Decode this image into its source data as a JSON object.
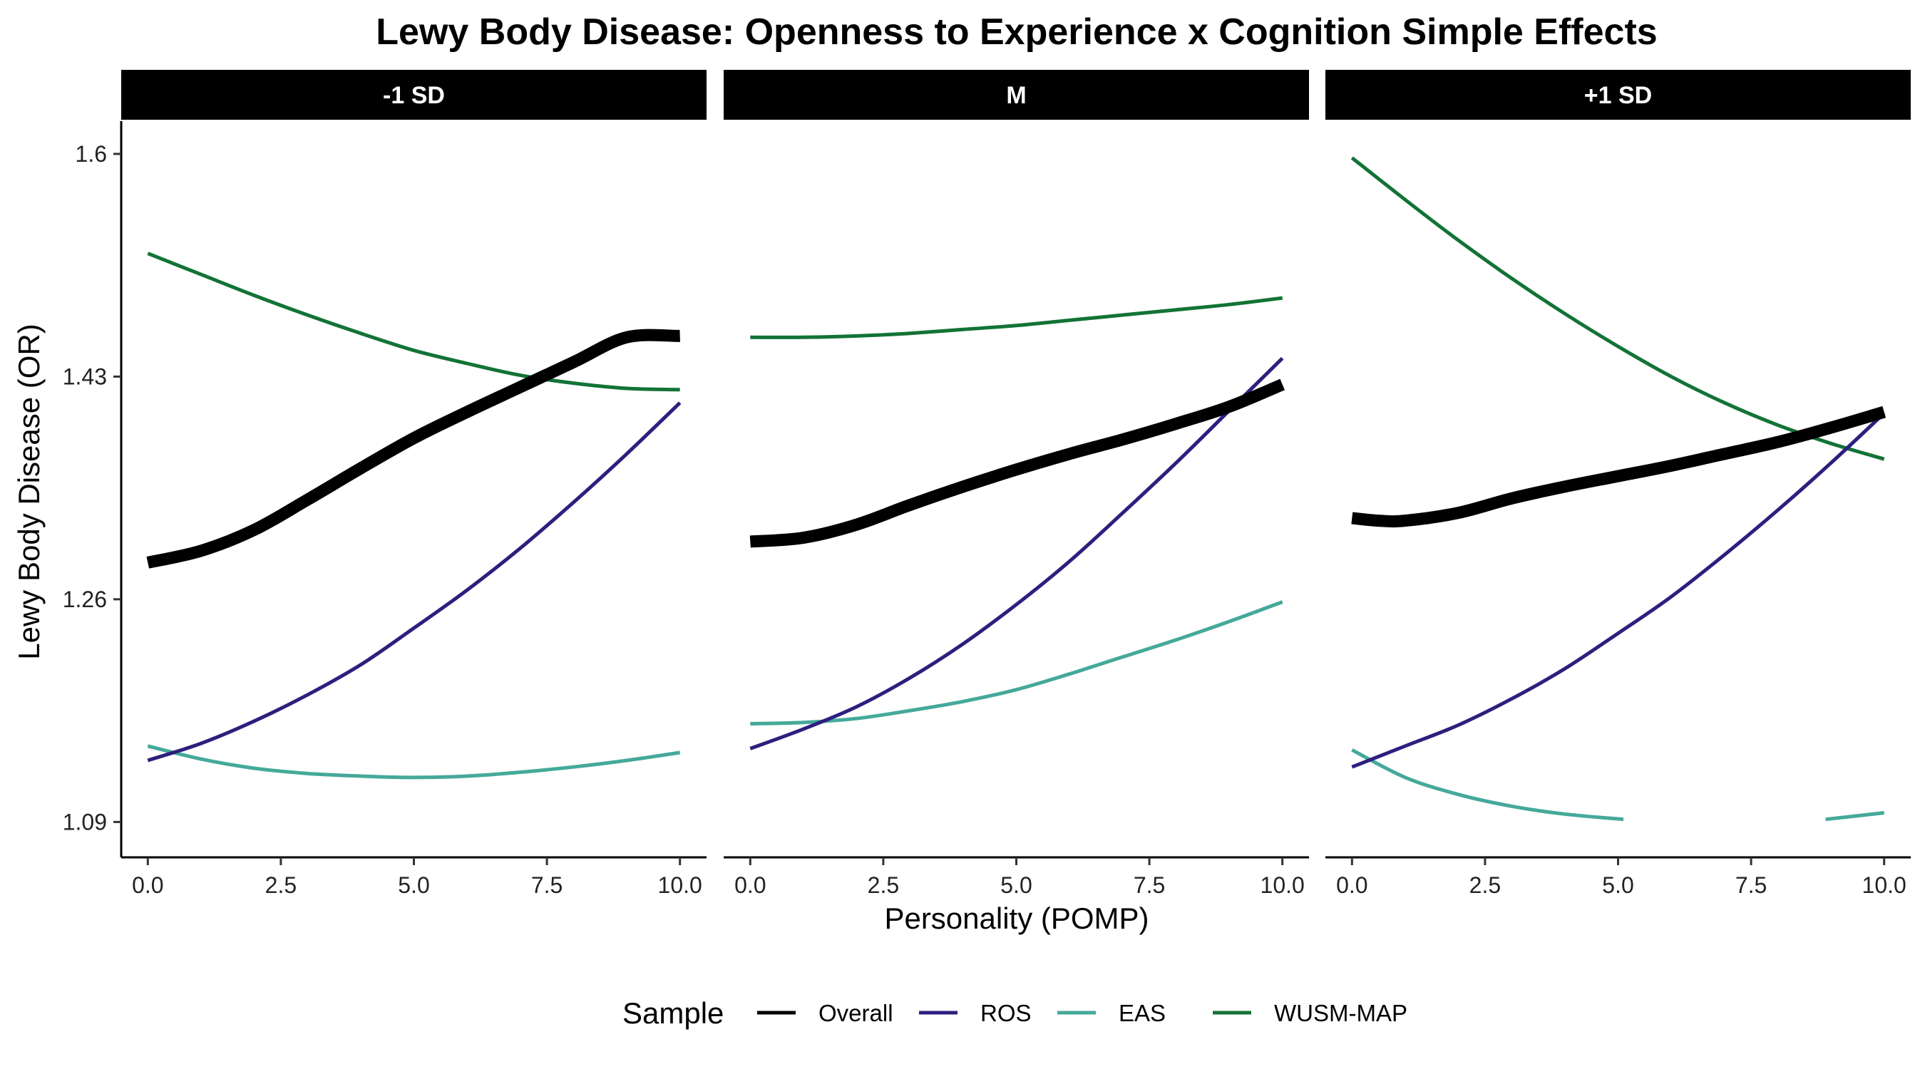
{
  "chart_data": {
    "type": "line",
    "title": "Lewy Body Disease: Openness to Experience x Cognition Simple Effects",
    "xlabel": "Personality (POMP)",
    "ylabel": "Lewy Body Disease (OR)",
    "xlim": [
      -0.5,
      10.5
    ],
    "ylim": [
      1.063,
      1.625
    ],
    "x_ticks": [
      0,
      2.5,
      5,
      7.5,
      10
    ],
    "x_tick_labels": [
      "0.0",
      "2.5",
      "5.0",
      "7.5",
      "10.0"
    ],
    "y_ticks": [
      1.09,
      1.26,
      1.43,
      1.6
    ],
    "y_tick_labels": [
      "1.09",
      "1.26",
      "1.43",
      "1.6"
    ],
    "grid": false,
    "legend": {
      "title": "Sample",
      "position": "bottom",
      "entries": [
        "Overall",
        "ROS",
        "EAS",
        "WUSM-MAP"
      ]
    },
    "series_styles": {
      "Overall": {
        "color": "#000000",
        "thick": true
      },
      "ROS": {
        "color": "#2d1f7e",
        "thick": false
      },
      "EAS": {
        "color": "#45a99a",
        "thick": false
      },
      "WUSM-MAP": {
        "color": "#127336",
        "thick": false
      }
    },
    "panels": [
      {
        "label": "-1 SD",
        "series": [
          {
            "name": "Overall",
            "x": [
              0,
              1,
              2,
              3,
              4,
              5,
              6,
              7,
              8,
              9,
              10
            ],
            "y": [
              1.288,
              1.297,
              1.313,
              1.336,
              1.36,
              1.383,
              1.403,
              1.422,
              1.441,
              1.46,
              1.461
            ]
          },
          {
            "name": "ROS",
            "x": [
              0,
              1,
              2,
              3,
              4,
              5,
              6,
              7,
              8,
              9,
              10
            ],
            "y": [
              1.137,
              1.15,
              1.167,
              1.187,
              1.21,
              1.238,
              1.267,
              1.299,
              1.334,
              1.371,
              1.41
            ]
          },
          {
            "name": "EAS",
            "x": [
              0,
              1,
              2,
              3,
              4,
              5,
              6,
              7,
              8,
              9,
              10
            ],
            "y": [
              1.148,
              1.138,
              1.131,
              1.127,
              1.125,
              1.124,
              1.125,
              1.128,
              1.132,
              1.137,
              1.143
            ]
          },
          {
            "name": "WUSM-MAP",
            "x": [
              0,
              1,
              2,
              3,
              4,
              5,
              6,
              7,
              8,
              9,
              10
            ],
            "y": [
              1.524,
              1.508,
              1.492,
              1.477,
              1.463,
              1.45,
              1.44,
              1.431,
              1.425,
              1.421,
              1.42
            ]
          }
        ]
      },
      {
        "label": "M",
        "series": [
          {
            "name": "Overall",
            "x": [
              0,
              1,
              2,
              3,
              4,
              5,
              6,
              7,
              8,
              9,
              10
            ],
            "y": [
              1.304,
              1.307,
              1.317,
              1.332,
              1.346,
              1.359,
              1.371,
              1.382,
              1.394,
              1.407,
              1.424
            ]
          },
          {
            "name": "ROS",
            "x": [
              0,
              1,
              2,
              3,
              4,
              5,
              6,
              7,
              8,
              9,
              10
            ],
            "y": [
              1.146,
              1.161,
              1.178,
              1.2,
              1.226,
              1.256,
              1.289,
              1.326,
              1.364,
              1.404,
              1.444
            ]
          },
          {
            "name": "EAS",
            "x": [
              0,
              1,
              2,
              3,
              4,
              5,
              6,
              7,
              8,
              9,
              10
            ],
            "y": [
              1.165,
              1.166,
              1.169,
              1.175,
              1.182,
              1.191,
              1.203,
              1.216,
              1.229,
              1.243,
              1.258
            ]
          },
          {
            "name": "WUSM-MAP",
            "x": [
              0,
              1,
              2,
              3,
              4,
              5,
              6,
              7,
              8,
              9,
              10
            ],
            "y": [
              1.46,
              1.46,
              1.461,
              1.463,
              1.466,
              1.469,
              1.473,
              1.477,
              1.481,
              1.485,
              1.49
            ]
          }
        ]
      },
      {
        "label": "+1 SD",
        "series": [
          {
            "name": "Overall",
            "x": [
              0,
              0.5,
              1,
              2,
              3,
              4,
              5,
              6,
              7,
              8,
              9,
              10
            ],
            "y": [
              1.322,
              1.32,
              1.32,
              1.326,
              1.337,
              1.346,
              1.354,
              1.362,
              1.371,
              1.38,
              1.391,
              1.403
            ]
          },
          {
            "name": "ROS",
            "x": [
              0,
              1,
              2,
              3,
              4,
              5,
              6,
              7,
              8,
              9,
              10
            ],
            "y": [
              1.132,
              1.148,
              1.164,
              1.184,
              1.207,
              1.234,
              1.262,
              1.294,
              1.328,
              1.364,
              1.402
            ]
          },
          {
            "name": "EAS",
            "x": [
              0,
              1,
              2,
              3,
              4,
              5.1
            ],
            "y": [
              1.145,
              1.124,
              1.111,
              1.102,
              1.096,
              1.092
            ]
          },
          {
            "name": "EAS",
            "x": [
              8.9,
              10
            ],
            "y": [
              1.092,
              1.097
            ]
          },
          {
            "name": "WUSM-MAP",
            "x": [
              0,
              1,
              2,
              3,
              4,
              5,
              6,
              7,
              8,
              9,
              10
            ],
            "y": [
              1.597,
              1.565,
              1.534,
              1.505,
              1.478,
              1.453,
              1.43,
              1.41,
              1.393,
              1.379,
              1.367
            ]
          }
        ]
      }
    ]
  }
}
